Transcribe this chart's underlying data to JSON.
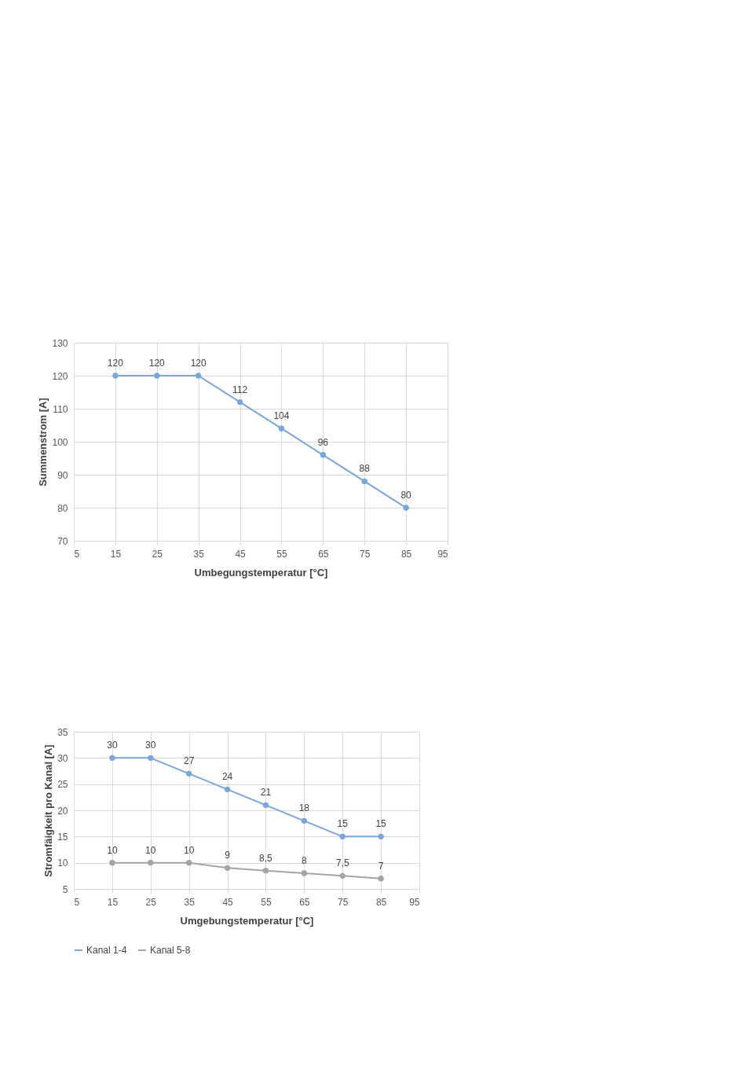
{
  "chart_data": [
    {
      "type": "line",
      "xlabel": "Umbegungstemperatur [°C]",
      "ylabel": "Summenstrom [A]",
      "x": [
        15,
        25,
        35,
        45,
        55,
        65,
        75,
        85
      ],
      "series": [
        {
          "color": "#7aa6db",
          "values": [
            120,
            120,
            120,
            112,
            104,
            96,
            88,
            80
          ]
        }
      ],
      "xlim": [
        5,
        95
      ],
      "xticks": [
        5,
        15,
        25,
        35,
        45,
        55,
        65,
        75,
        85,
        95
      ],
      "ylim": [
        70,
        130
      ],
      "yticks": [
        70,
        80,
        90,
        100,
        110,
        120,
        130
      ],
      "grid": true,
      "marker": "circle",
      "data_labels": true
    },
    {
      "type": "line",
      "xlabel": "Umgebungstemperatur [°C]",
      "ylabel": "Stromfäigkeit pro Kanal [A]",
      "x": [
        15,
        25,
        35,
        45,
        55,
        65,
        75,
        85
      ],
      "series": [
        {
          "name": "Kanal 1-4",
          "color": "#7aa6db",
          "values": [
            30,
            30,
            27,
            24,
            21,
            18,
            15,
            15
          ],
          "value_labels": [
            "30",
            "30",
            "27",
            "24",
            "21",
            "18",
            "15",
            "15"
          ]
        },
        {
          "name": "Kanal 5-8",
          "color": "#a5a5a5",
          "values": [
            10,
            10,
            10,
            9,
            8.5,
            8,
            7.5,
            7
          ],
          "value_labels": [
            "10",
            "10",
            "10",
            "9",
            "8,5",
            "8",
            "7,5",
            "7"
          ]
        }
      ],
      "xlim": [
        5,
        95
      ],
      "xticks": [
        5,
        15,
        25,
        35,
        45,
        55,
        65,
        75,
        85,
        95
      ],
      "ylim": [
        5,
        35
      ],
      "yticks": [
        5,
        10,
        15,
        20,
        25,
        30,
        35
      ],
      "grid": true,
      "marker": "circle",
      "legend": "bottom"
    }
  ]
}
